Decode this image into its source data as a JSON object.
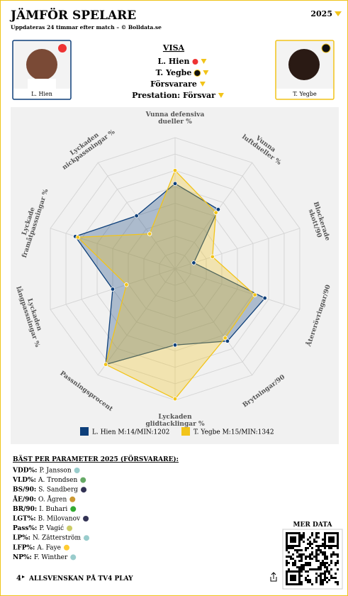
{
  "header": {
    "title": "JÄMFÖR SPELARE",
    "subtitle": "Uppdateras 24 timmar efter match – © Bolldata.se",
    "season": "2025"
  },
  "players": [
    {
      "name": "L. Hien"
    },
    {
      "name": "T. Yegbe"
    }
  ],
  "visa": {
    "title": "VISA",
    "options": [
      "L. Hien",
      "T. Yegbe",
      "Försvarare",
      "Prestation: Försvar"
    ]
  },
  "chart_data": {
    "type": "radar",
    "categories": [
      "Vunna defensiva\ndueller %",
      "Vunna\nluftdueller %",
      "Blockerade\nskott/90",
      "Återerövringar/90",
      "Brytningar/90",
      "Lyckaden\nglidtacklingar %",
      "Passningsprocent",
      "Lyckaden\nlångpassningar %",
      "Lyckade\nframåtpassningar %",
      "Lyckaden\nnickpassningar %"
    ],
    "series": [
      {
        "name": "L. Hien M:14/MIN:1202",
        "color": "#0d3f7a",
        "values": [
          65,
          56,
          15,
          72,
          68,
          58,
          90,
          50,
          80,
          50
        ]
      },
      {
        "name": "T. Yegbe M:15/MIN:1342",
        "color": "#f2c41a",
        "values": [
          75,
          53,
          30,
          64,
          65,
          99,
          90,
          39,
          78,
          33
        ]
      }
    ],
    "rlim": [
      0,
      100
    ],
    "rticks": [
      12.5,
      25,
      37.5,
      50,
      62.5,
      75,
      87.5,
      100
    ],
    "grid": true
  },
  "best": {
    "title": "BÄST PER PARAMETER 2025 (FÖRSVARARE):",
    "rows": [
      {
        "param": "VDD%:",
        "player": "P. Jansson"
      },
      {
        "param": "VLD%:",
        "player": "A. Trondsen"
      },
      {
        "param": "BS/90:",
        "player": "S. Sandberg"
      },
      {
        "param": "ÅE/90:",
        "player": "O. Ågren"
      },
      {
        "param": "BR/90:",
        "player": "I. Buhari"
      },
      {
        "param": "LGT%:",
        "player": "B. Milovanov"
      },
      {
        "param": "Pass%:",
        "player": "P. Vagić"
      },
      {
        "param": "LP%:",
        "player": "N. Zätterström"
      },
      {
        "param": "LFP%:",
        "player": "A. Faye"
      },
      {
        "param": "NP%:",
        "player": "F. Winther"
      }
    ]
  },
  "footer": {
    "tv4": "ALLSVENSKAN PÅ TV4 PLAY",
    "mer_data": "MER DATA"
  }
}
